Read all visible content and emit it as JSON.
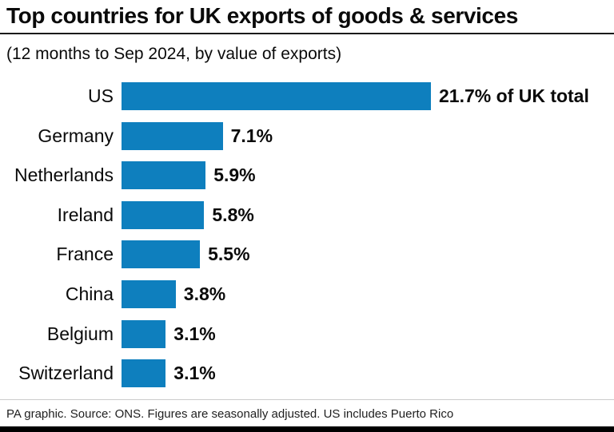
{
  "header": {
    "title": "Top countries for UK exports of goods & services",
    "subtitle": "(12 months to Sep 2024, by value of exports)"
  },
  "footer": {
    "text": "PA graphic. Source: ONS. Figures are seasonally adjusted. US includes Puerto Rico"
  },
  "colors": {
    "bar": "#0e7fbe",
    "title_rule": "#1a1a1a",
    "footer_rule": "#cccccc",
    "bottom_bar": "#000000",
    "text": "#0a0a0a"
  },
  "chart_data": {
    "type": "bar",
    "orientation": "horizontal",
    "title": "Top countries for UK exports of goods & services",
    "subtitle": "(12 months to Sep 2024, by value of exports)",
    "xlabel": "",
    "ylabel": "",
    "unit": "% of UK total exports",
    "xlim": [
      0,
      21.7
    ],
    "grid": false,
    "legend": "none",
    "categories": [
      "US",
      "Germany",
      "Netherlands",
      "Ireland",
      "France",
      "China",
      "Belgium",
      "Switzerland"
    ],
    "values": [
      21.7,
      7.1,
      5.9,
      5.8,
      5.5,
      3.8,
      3.1,
      3.1
    ],
    "value_labels": [
      "21.7% of UK total",
      "7.1%",
      "5.9%",
      "5.8%",
      "5.5%",
      "3.8%",
      "3.1%",
      "3.1%"
    ]
  }
}
